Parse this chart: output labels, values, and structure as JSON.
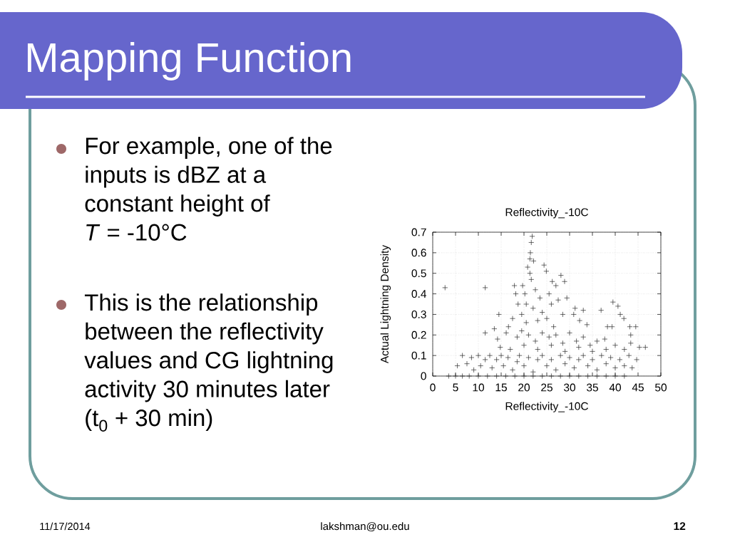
{
  "chart_data": {
    "type": "scatter",
    "title": "Mapping Function",
    "subtitle": "Reflectivity_-10C",
    "xlabel": "Reflectivity_-10C",
    "ylabel": "Actual Lightning Density",
    "annotations": [
      "For example, one of the inputs is dBZ at a constant height of\n*T* = -10°C",
      "This is the relationship between the reflectivity values and CG lightning activity 30 minutes later (t$_{0}$ + 30 min)",
      "11/17/2014",
      "lakshman@ou.edu",
      "12"
    ],
    "x": [
      2.7,
      11.5,
      11.5,
      14.5,
      13.5,
      14.2,
      6.5,
      5.4,
      16.1,
      16.6,
      17.5,
      18.7,
      18.2,
      17.9,
      14.8,
      21.8,
      21.6,
      21.4,
      21.3,
      22.1,
      20.8,
      21.3,
      21.6,
      19.7,
      24.4,
      24.9,
      28.1,
      28.9,
      26.2,
      27,
      29.4,
      31.2,
      33,
      36.9,
      39.5,
      40.6,
      41.1,
      41.9,
      43.2,
      44.5,
      43.4,
      46.6,
      45.3,
      43.4,
      44.7,
      43.7,
      39.3,
      38.3,
      37.7,
      33.8,
      32.2,
      30.9,
      20.2,
      22.5,
      23.5,
      25.5,
      20.5,
      22,
      24,
      26,
      27.5,
      19.5,
      23,
      25,
      28.5,
      20.5,
      26.5,
      18.5,
      19.5,
      21,
      22.5,
      24,
      25.5,
      27,
      28.5,
      30,
      31.5,
      33,
      34.5,
      36,
      17,
      20,
      23,
      26,
      29,
      32,
      35,
      38,
      40,
      42,
      7.5,
      8.5,
      9,
      10,
      10.5,
      11.5,
      12.5,
      13,
      14,
      15,
      15.5,
      16.5,
      17.5,
      18.5,
      19,
      20,
      21,
      22,
      23,
      24,
      25,
      26,
      27,
      28,
      29,
      30,
      31,
      32,
      33,
      34,
      35,
      36,
      37,
      38,
      39,
      40,
      41,
      42,
      43,
      3.5,
      5,
      6.5,
      8,
      10,
      12,
      14,
      16,
      18,
      20,
      22,
      24,
      26,
      28,
      30,
      32,
      34,
      36,
      38,
      40,
      42
    ],
    "values": [
      0.43,
      0.43,
      0.21,
      0.3,
      0.23,
      0.18,
      0.1,
      0.05,
      0.21,
      0.24,
      0.28,
      0.35,
      0.4,
      0.44,
      0.14,
      0.68,
      0.65,
      0.6,
      0.57,
      0.56,
      0.53,
      0.5,
      0.47,
      0.44,
      0.54,
      0.51,
      0.49,
      0.46,
      0.46,
      0.44,
      0.38,
      0.33,
      0.32,
      0.32,
      0.36,
      0.34,
      0.3,
      0.28,
      0.24,
      0.24,
      0.2,
      0.14,
      0.14,
      0.16,
      0.08,
      0.04,
      0.24,
      0.24,
      0.18,
      0.25,
      0.27,
      0.3,
      0.4,
      0.42,
      0.38,
      0.4,
      0.35,
      0.33,
      0.31,
      0.35,
      0.37,
      0.3,
      0.27,
      0.28,
      0.3,
      0.26,
      0.24,
      0.19,
      0.22,
      0.2,
      0.17,
      0.21,
      0.19,
      0.2,
      0.16,
      0.21,
      0.17,
      0.19,
      0.15,
      0.17,
      0.13,
      0.15,
      0.13,
      0.15,
      0.12,
      0.14,
      0.12,
      0.13,
      0.15,
      0.13,
      0.06,
      0.09,
      0.03,
      0.1,
      0.05,
      0.08,
      0.1,
      0.04,
      0.08,
      0.1,
      0.05,
      0.09,
      0.03,
      0.07,
      0.1,
      0.05,
      0.09,
      0.02,
      0.08,
      0.1,
      0.05,
      0.08,
      0.03,
      0.1,
      0.06,
      0.09,
      0.04,
      0.08,
      0.1,
      0.05,
      0.08,
      0.03,
      0.1,
      0.06,
      0.09,
      0.04,
      0.08,
      0.05,
      0.1,
      0,
      0,
      0,
      0,
      0,
      0,
      0,
      0,
      0,
      0,
      0,
      0,
      0,
      0,
      0,
      0,
      0,
      0,
      0,
      0,
      0
    ],
    "color": "#2b2b2b",
    "marker": "cross",
    "grid": true,
    "xlim": [
      0,
      50
    ],
    "ylim": [
      0,
      0.7
    ],
    "xticks": [
      0,
      5,
      10,
      15,
      20,
      25,
      30,
      35,
      40,
      45,
      50
    ],
    "yticks": [
      0,
      0.1,
      0.2,
      0.3,
      0.4,
      0.5,
      0.6,
      0.7
    ]
  }
}
